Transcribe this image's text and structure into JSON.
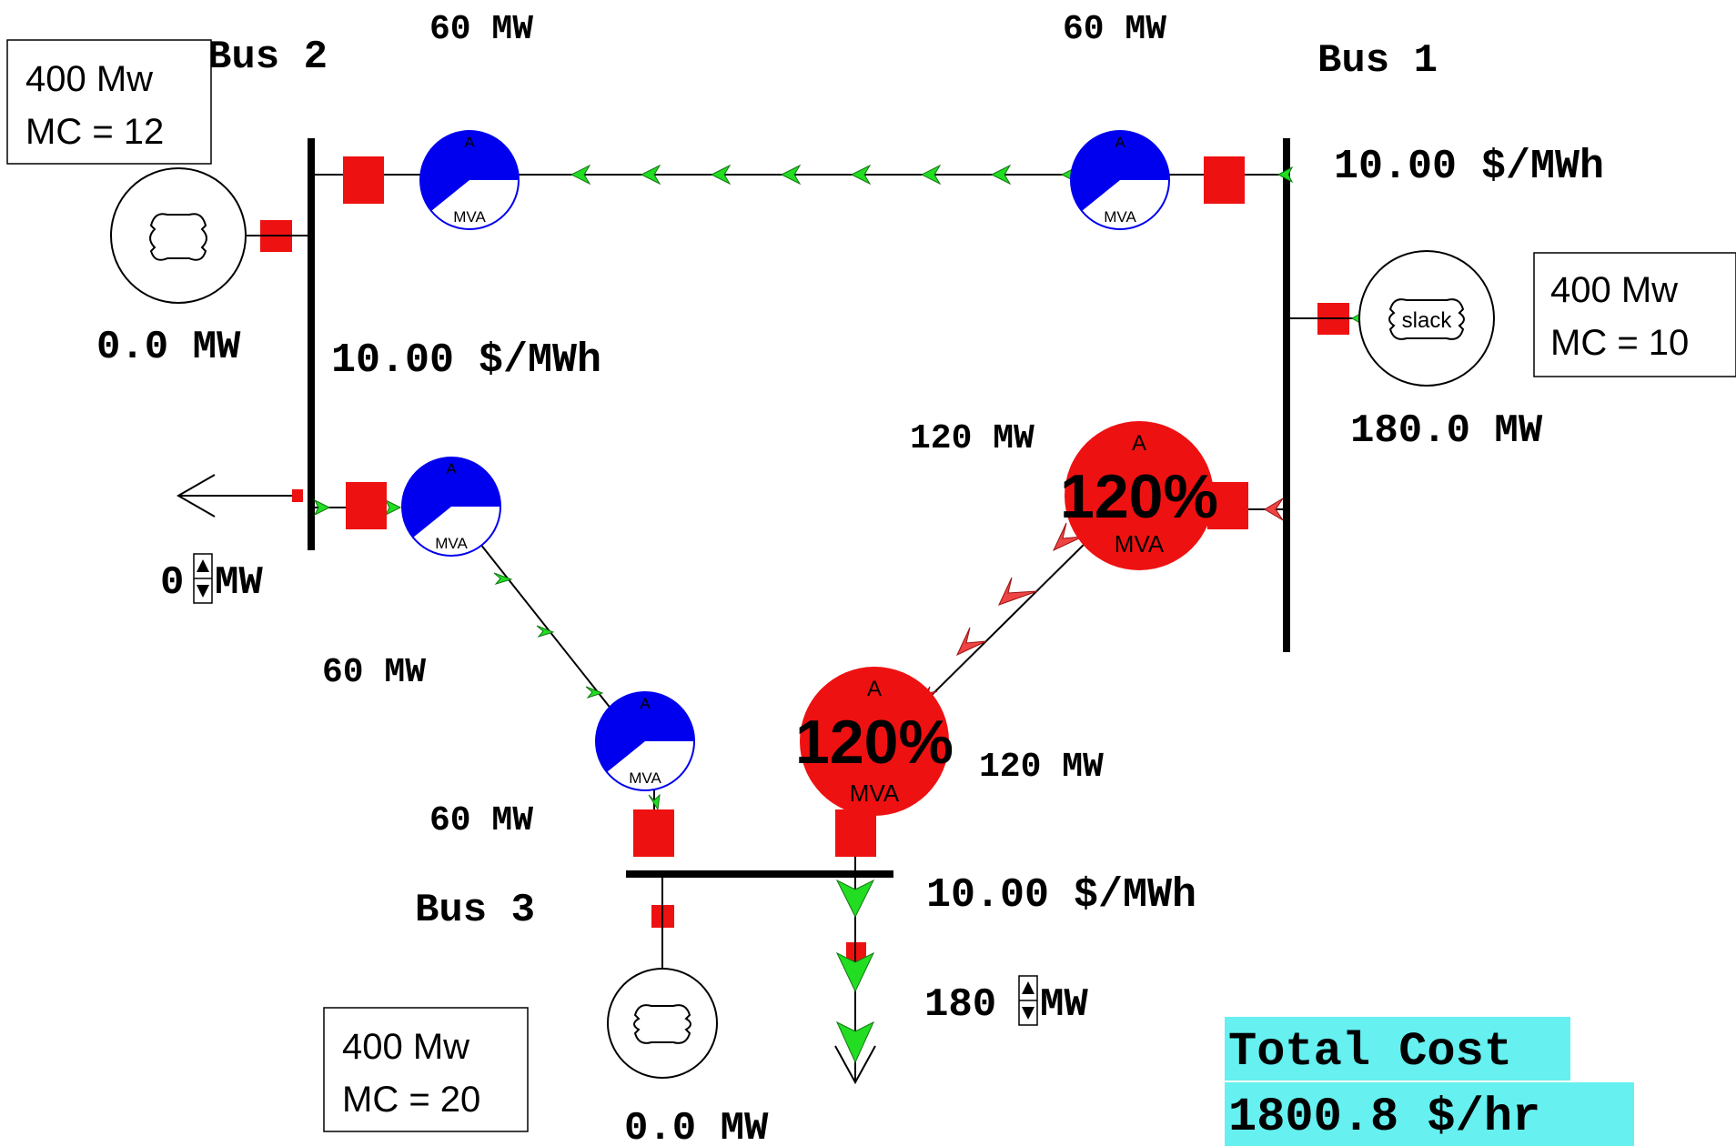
{
  "buses": {
    "bus1": {
      "name": "Bus 1",
      "price": "10.00 $/MWh"
    },
    "bus2": {
      "name": "Bus 2",
      "price": "10.00 $/MWh"
    },
    "bus3": {
      "name": "Bus 3",
      "price": "10.00 $/MWh"
    }
  },
  "generators": {
    "gen1": {
      "output": "180.0 MW",
      "slack_label": "slack",
      "info_line1": "400 Mw",
      "info_line2": "MC = 10"
    },
    "gen2": {
      "output": "0.0 MW",
      "info_line1": "400 Mw",
      "info_line2": "MC = 12"
    },
    "gen3": {
      "output": "0.0 MW",
      "info_line1": "400 Mw",
      "info_line2": "MC = 20"
    }
  },
  "loads": {
    "bus2_load": {
      "value": "0",
      "unit": "MW"
    },
    "bus3_load": {
      "value": "180",
      "unit": "MW"
    }
  },
  "lines": {
    "line12": {
      "flow_bus2_end": "60 MW",
      "flow_bus1_end": "60 MW"
    },
    "line23": {
      "flow_bus2_end": "60 MW",
      "flow_bus3_end": "60 MW"
    },
    "line13": {
      "flow_bus1_end": "120 MW",
      "flow_bus3_end": "120 MW",
      "loading": "120%"
    }
  },
  "gauge_labels": {
    "top": "A",
    "bottom": "MVA"
  },
  "summary": {
    "label": "Total Cost",
    "value": "1800.8 $/hr"
  },
  "colors": {
    "normal_gauge": "#0000ee",
    "overload_gauge": "#ee1111",
    "breaker": "#ee1111",
    "flow_arrow_normal": "#22dd22",
    "flow_arrow_overload": "#ee4444",
    "cost_highlight": "#66f0f0"
  }
}
